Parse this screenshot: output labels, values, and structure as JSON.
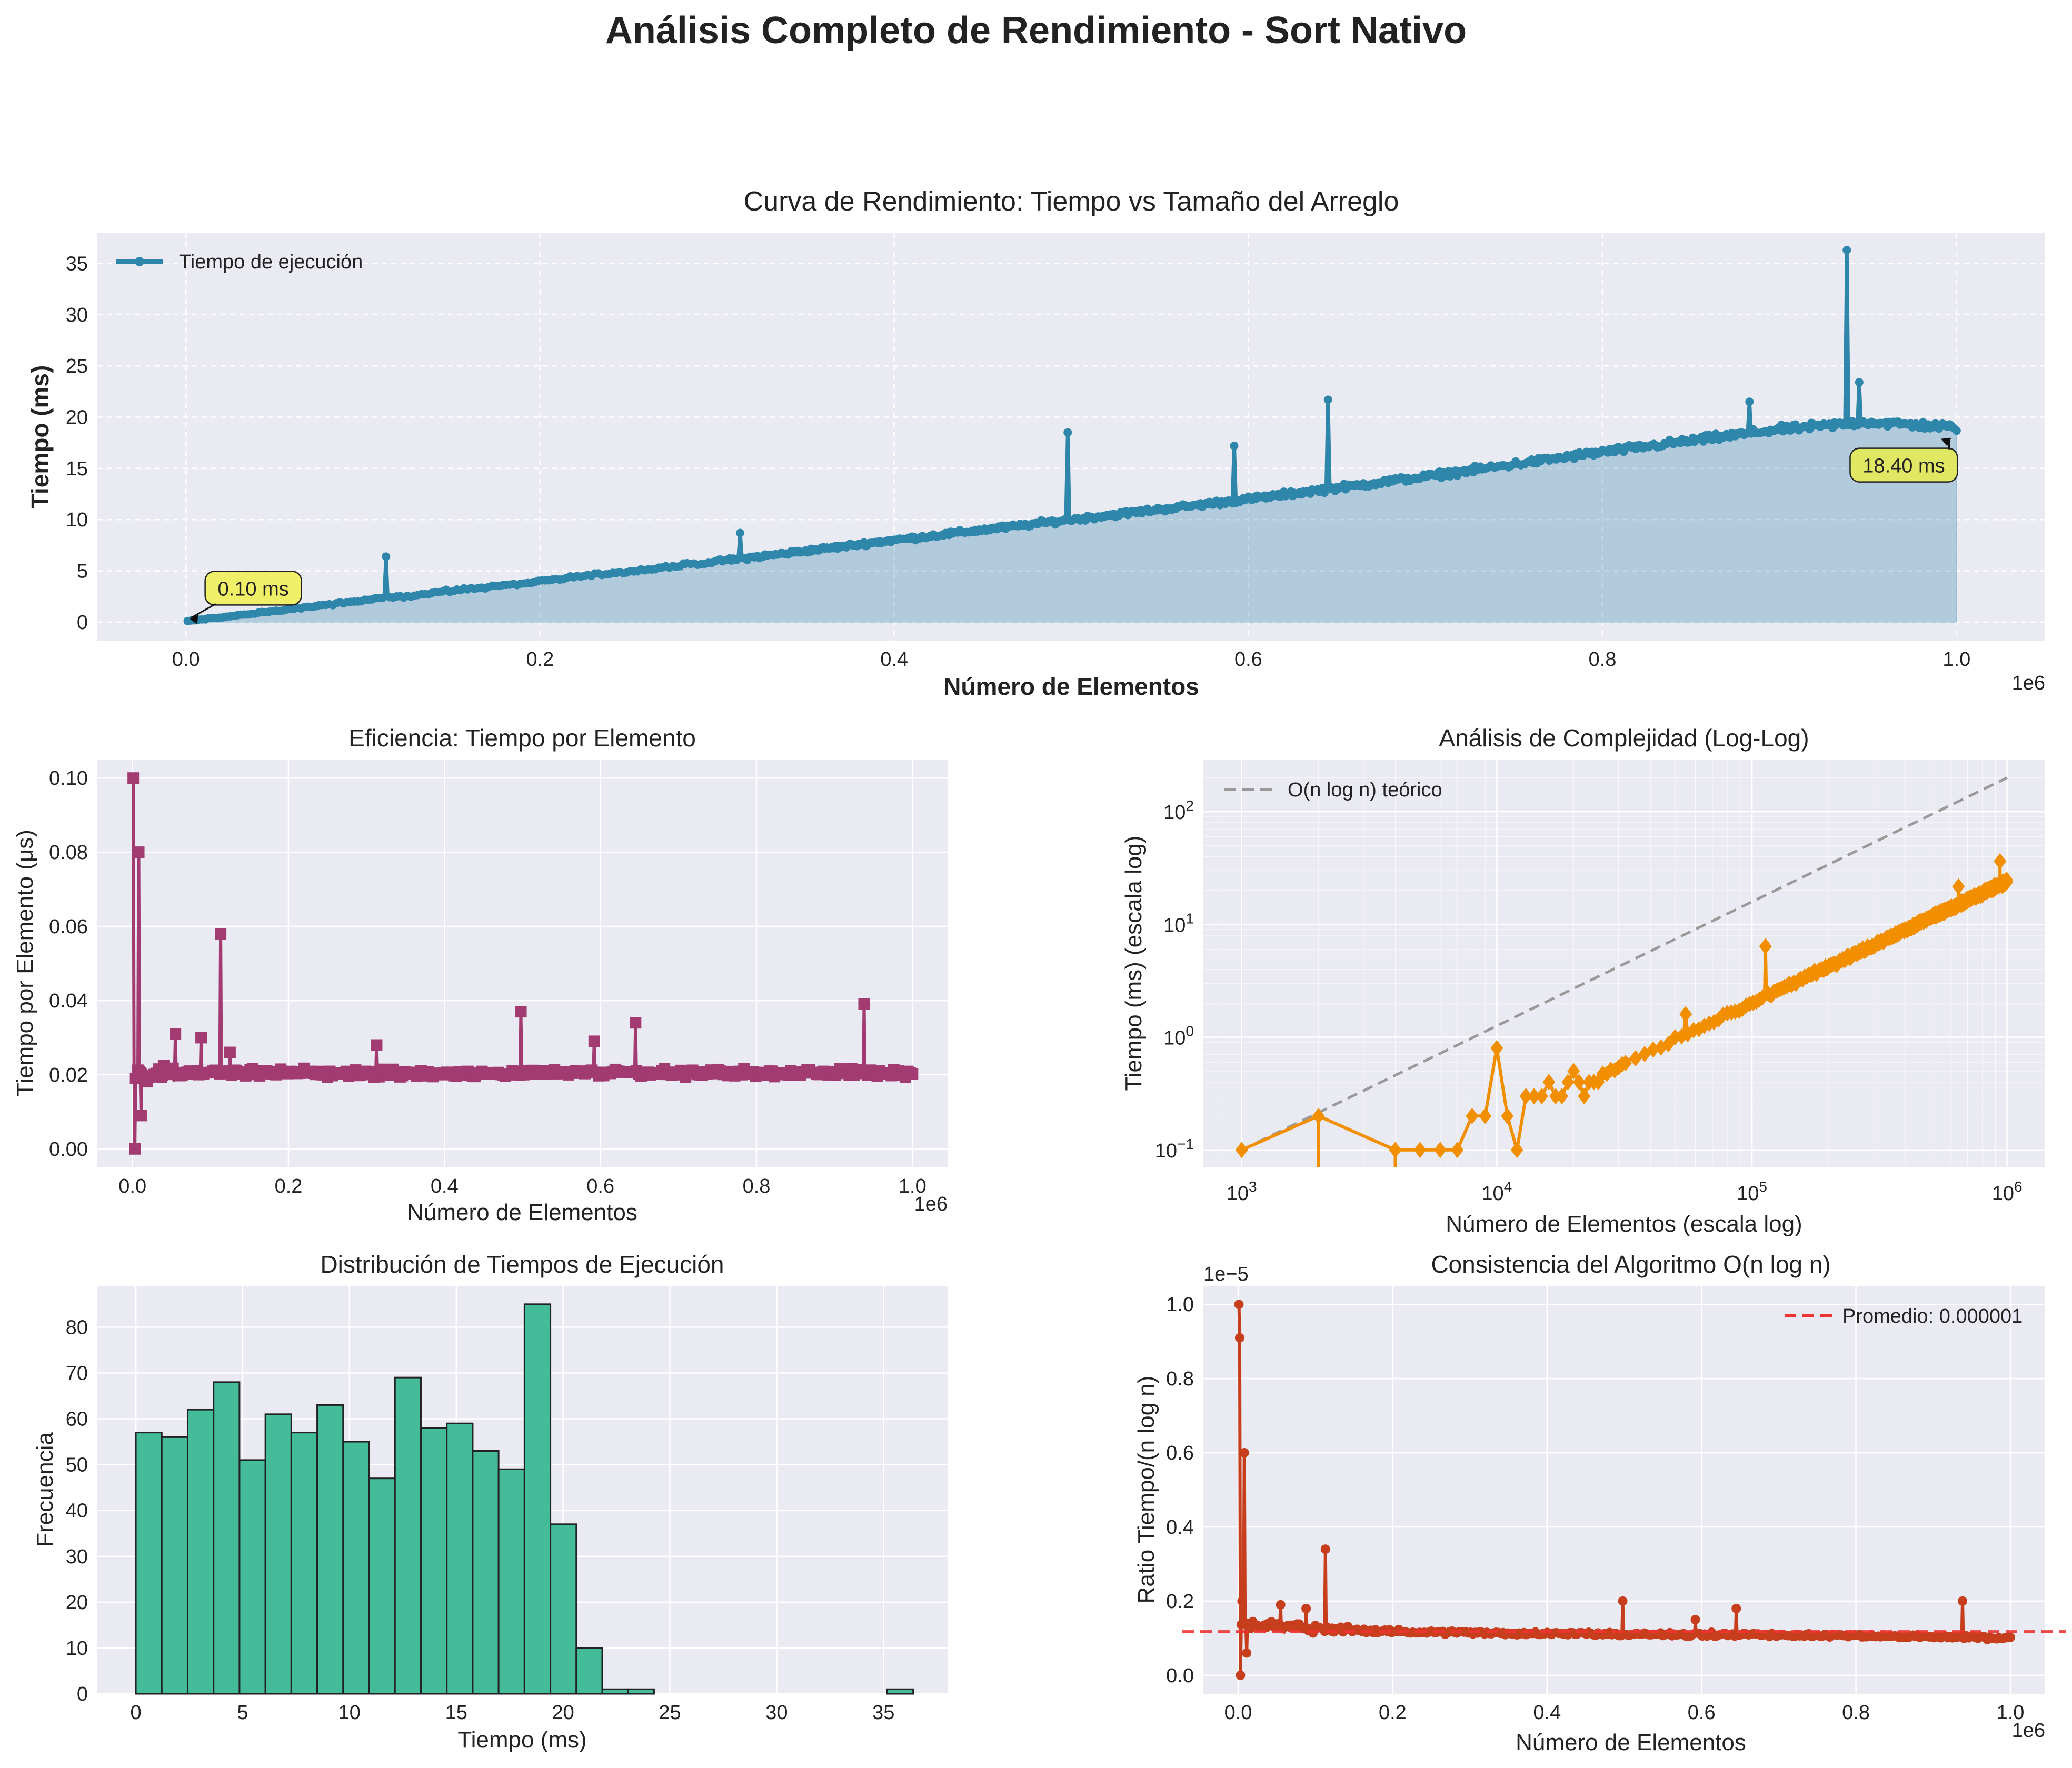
{
  "figure": {
    "title": "Análisis Completo de Rendimiento - Sort Nativo",
    "background": "#ffffff",
    "panel_background": "#eaeaf2"
  },
  "chart_data": [
    {
      "id": "performance_curve",
      "type": "line",
      "title": "Curva de Rendimiento: Tiempo vs Tamaño del Arreglo",
      "xlabel": "Número de Elementos",
      "ylabel": "Tiempo (ms)",
      "x_offset_label": "1e6",
      "xlim": [
        -50000,
        1050000
      ],
      "ylim": [
        -1.8,
        38
      ],
      "xticks": [
        0,
        200000,
        400000,
        600000,
        800000,
        1000000
      ],
      "xtick_labels": [
        "0.0",
        "0.2",
        "0.4",
        "0.6",
        "0.8",
        "1.0"
      ],
      "yticks": [
        0,
        5,
        10,
        15,
        20,
        25,
        30,
        35
      ],
      "grid": true,
      "legend": {
        "position": "upper left",
        "entries": [
          "Tiempo de ejecución"
        ]
      },
      "color": "#2e86ab",
      "fill": true,
      "trend": {
        "x": [
          1000,
          100000,
          200000,
          300000,
          400000,
          500000,
          600000,
          700000,
          800000,
          900000,
          950000,
          1000000
        ],
        "y": [
          0.1,
          2.1,
          4.0,
          5.9,
          8.0,
          10.0,
          12.0,
          14.2,
          16.6,
          18.8,
          19.5,
          19.0
        ]
      },
      "noise": 0.35,
      "spikes": [
        {
          "x": 113000,
          "y": 6.4
        },
        {
          "x": 313000,
          "y": 8.7
        },
        {
          "x": 498000,
          "y": 18.5
        },
        {
          "x": 592000,
          "y": 17.2
        },
        {
          "x": 645000,
          "y": 21.7
        },
        {
          "x": 883000,
          "y": 21.5
        },
        {
          "x": 938000,
          "y": 36.3
        },
        {
          "x": 945000,
          "y": 23.4
        }
      ],
      "annotations": [
        {
          "text": "0.10 ms",
          "x": 1000,
          "y": 0.1,
          "text_x": 15000,
          "text_y": 2.6,
          "box_color": "#f0f03a"
        },
        {
          "text": "18.40 ms",
          "x": 1000000,
          "y": 18.4,
          "text_x": 944000,
          "text_y": 14.6,
          "box_color": "#f0f03a"
        }
      ]
    },
    {
      "id": "efficiency",
      "type": "line",
      "title": "Eficiencia: Tiempo por Elemento",
      "xlabel": "Número de Elementos",
      "ylabel": "Tiempo por Elemento (μs)",
      "x_offset_label": "1e6",
      "xlim": [
        -45000,
        1045000
      ],
      "ylim": [
        -0.005,
        0.105
      ],
      "xticks": [
        0,
        200000,
        400000,
        600000,
        800000,
        1000000
      ],
      "xtick_labels": [
        "0.0",
        "0.2",
        "0.4",
        "0.6",
        "0.8",
        "1.0"
      ],
      "yticks": [
        0.0,
        0.02,
        0.04,
        0.06,
        0.08,
        0.1
      ],
      "ytick_labels": [
        "0.00",
        "0.02",
        "0.04",
        "0.06",
        "0.08",
        "0.10"
      ],
      "grid": true,
      "color": "#a23b72",
      "marker": "square",
      "baseline": 0.0205,
      "noise": 0.0012,
      "spikes": [
        {
          "x": 1000,
          "y": 0.1
        },
        {
          "x": 3000,
          "y": 0.0
        },
        {
          "x": 8000,
          "y": 0.08
        },
        {
          "x": 11000,
          "y": 0.009
        },
        {
          "x": 55000,
          "y": 0.031
        },
        {
          "x": 88000,
          "y": 0.03
        },
        {
          "x": 113000,
          "y": 0.058
        },
        {
          "x": 125000,
          "y": 0.026
        },
        {
          "x": 313000,
          "y": 0.028
        },
        {
          "x": 498000,
          "y": 0.037
        },
        {
          "x": 592000,
          "y": 0.029
        },
        {
          "x": 645000,
          "y": 0.034
        },
        {
          "x": 938000,
          "y": 0.039
        }
      ]
    },
    {
      "id": "complexity_loglog",
      "type": "line",
      "title": "Análisis de Complejidad (Log-Log)",
      "xlabel": "Número de Elementos (escala log)",
      "ylabel": "Tiempo (ms) (escala log)",
      "x_scale": "log",
      "y_scale": "log",
      "xlim": [
        708,
        1410000
      ],
      "ylim": [
        0.07,
        290
      ],
      "xticks": [
        1000,
        10000,
        100000,
        1000000
      ],
      "xtick_labels": [
        "10^3",
        "10^4",
        "10^5",
        "10^6"
      ],
      "yticks": [
        0.1,
        1,
        10,
        100
      ],
      "ytick_labels": [
        "10^−1",
        "10^0",
        "10^1",
        "10^2"
      ],
      "grid": true,
      "legend": {
        "position": "upper left",
        "entries": [
          "O(n log n) teórico"
        ]
      },
      "series": [
        {
          "name": "O(n log n) teórico",
          "style": "dashed",
          "color": "#999999",
          "x": [
            1000,
            1000000
          ],
          "y": [
            0.1,
            200
          ]
        },
        {
          "name": "",
          "color": "#f18f01",
          "marker": "diamond",
          "x": [
            1000,
            2000,
            4000,
            5000,
            6000,
            7000,
            8000,
            9000,
            10000,
            11000,
            12000,
            13000,
            14000,
            15000,
            16000,
            17000,
            18000,
            19000,
            20000,
            21000,
            22000,
            23000,
            24000,
            25000
          ],
          "y": [
            0.1,
            0.2,
            0.1,
            0.1,
            0.1,
            0.1,
            0.2,
            0.2,
            0.8,
            0.2,
            0.1,
            0.3,
            0.3,
            0.3,
            0.4,
            0.3,
            0.3,
            0.4,
            0.5,
            0.4,
            0.3,
            0.4,
            0.4,
            0.4
          ],
          "trend_from": 25000,
          "trend_to": 1000000,
          "trend_exponent": 1.08,
          "trend_at_start": 0.45,
          "noise": 0.05,
          "spikes": [
            {
              "x": 50000,
              "y": 1.0
            },
            {
              "x": 55000,
              "y": 1.6
            },
            {
              "x": 113000,
              "y": 6.4
            },
            {
              "x": 938000,
              "y": 36.3
            },
            {
              "x": 645000,
              "y": 21.7
            }
          ]
        }
      ]
    },
    {
      "id": "histogram",
      "type": "bar",
      "title": "Distribución de Tiempos de Ejecución",
      "xlabel": "Tiempo (ms)",
      "ylabel": "Frecuencia",
      "xlim": [
        -1.8,
        38
      ],
      "ylim": [
        0,
        89
      ],
      "xticks": [
        0,
        5,
        10,
        15,
        20,
        25,
        30,
        35
      ],
      "yticks": [
        0,
        10,
        20,
        30,
        40,
        50,
        60,
        70,
        80
      ],
      "grid": true,
      "color": "#44bb99",
      "bin_start": 0.0,
      "bin_width": 1.213,
      "values": [
        57,
        56,
        62,
        68,
        51,
        61,
        57,
        63,
        55,
        47,
        69,
        58,
        59,
        53,
        49,
        85,
        37,
        10,
        1,
        1,
        0,
        0,
        0,
        0,
        0,
        0,
        0,
        0,
        0,
        1
      ]
    },
    {
      "id": "consistency",
      "type": "line",
      "title": "Consistencia del Algoritmo O(n log n)",
      "xlabel": "Número de Elementos",
      "ylabel": "Ratio Tiempo/(n log n)",
      "x_offset_label": "1e6",
      "y_offset_label": "1e−5",
      "xlim": [
        -45000,
        1045000
      ],
      "ylim": [
        -0.05,
        1.05
      ],
      "xticks": [
        0,
        200000,
        400000,
        600000,
        800000,
        1000000
      ],
      "xtick_labels": [
        "0.0",
        "0.2",
        "0.4",
        "0.6",
        "0.8",
        "1.0"
      ],
      "yticks": [
        0.0,
        0.2,
        0.4,
        0.6,
        0.8,
        1.0
      ],
      "ytick_labels": [
        "0.0",
        "0.2",
        "0.4",
        "0.6",
        "0.8",
        "1.0"
      ],
      "grid": true,
      "legend": {
        "position": "upper right",
        "entries": [
          "Promedio: 0.000001"
        ]
      },
      "color": "#c73e1d",
      "mean_line": {
        "y": 0.118,
        "color": "#ee3333",
        "label": "Promedio: 0.000001"
      },
      "trend": {
        "x": [
          0,
          30000,
          100000,
          200000,
          400000,
          600000,
          800000,
          1000000
        ],
        "y": [
          0.14,
          0.135,
          0.125,
          0.118,
          0.112,
          0.11,
          0.107,
          0.1
        ]
      },
      "noise": 0.006,
      "spikes": [
        {
          "x": 1000,
          "y": 1.0
        },
        {
          "x": 2000,
          "y": 0.91
        },
        {
          "x": 3000,
          "y": 0.0
        },
        {
          "x": 5000,
          "y": 0.2
        },
        {
          "x": 8000,
          "y": 0.6
        },
        {
          "x": 11000,
          "y": 0.06
        },
        {
          "x": 55000,
          "y": 0.19
        },
        {
          "x": 88000,
          "y": 0.18
        },
        {
          "x": 113000,
          "y": 0.34
        },
        {
          "x": 498000,
          "y": 0.2
        },
        {
          "x": 592000,
          "y": 0.15
        },
        {
          "x": 645000,
          "y": 0.18
        },
        {
          "x": 938000,
          "y": 0.2
        }
      ]
    }
  ]
}
